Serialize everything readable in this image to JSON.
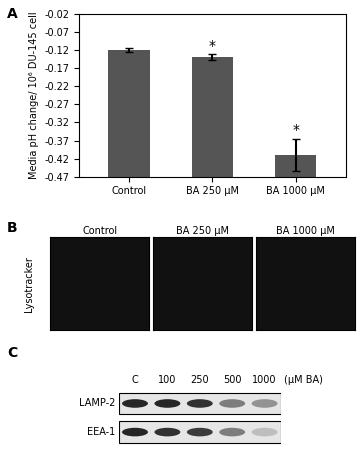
{
  "panel_labels": [
    "A",
    "B",
    "C"
  ],
  "chart_data": {
    "type": "bar",
    "y_label": "Media pH change/ 10⁶ DU-145 cell",
    "categories": [
      "Control",
      "BA 250 μM",
      "BA 1000 μM"
    ],
    "values": [
      -0.12,
      -0.14,
      -0.41
    ],
    "errors": [
      0.005,
      0.008,
      0.045
    ],
    "color": "#555555",
    "ylim": [
      -0.47,
      -0.02
    ],
    "yticks": [
      -0.02,
      -0.07,
      -0.12,
      -0.17,
      -0.22,
      -0.27,
      -0.32,
      -0.37,
      -0.42,
      -0.47
    ],
    "grid": false,
    "annotations": [
      {
        "category": "BA 250 μM",
        "text": "*"
      },
      {
        "category": "BA 1000 μM",
        "text": "*"
      }
    ]
  },
  "images": {
    "row_label": "Lysotracker",
    "columns": [
      "Control",
      "BA 250 μM",
      "BA 1000 μM"
    ]
  },
  "blot": {
    "lanes": [
      "C",
      "100",
      "250",
      "500",
      "1000"
    ],
    "unit": "(μM BA)",
    "rows": [
      {
        "label": "LAMP-2",
        "intensity": [
          1.0,
          1.0,
          0.95,
          0.6,
          0.5
        ]
      },
      {
        "label": "EEA-1",
        "intensity": [
          1.0,
          0.95,
          0.9,
          0.6,
          0.3
        ]
      }
    ]
  }
}
